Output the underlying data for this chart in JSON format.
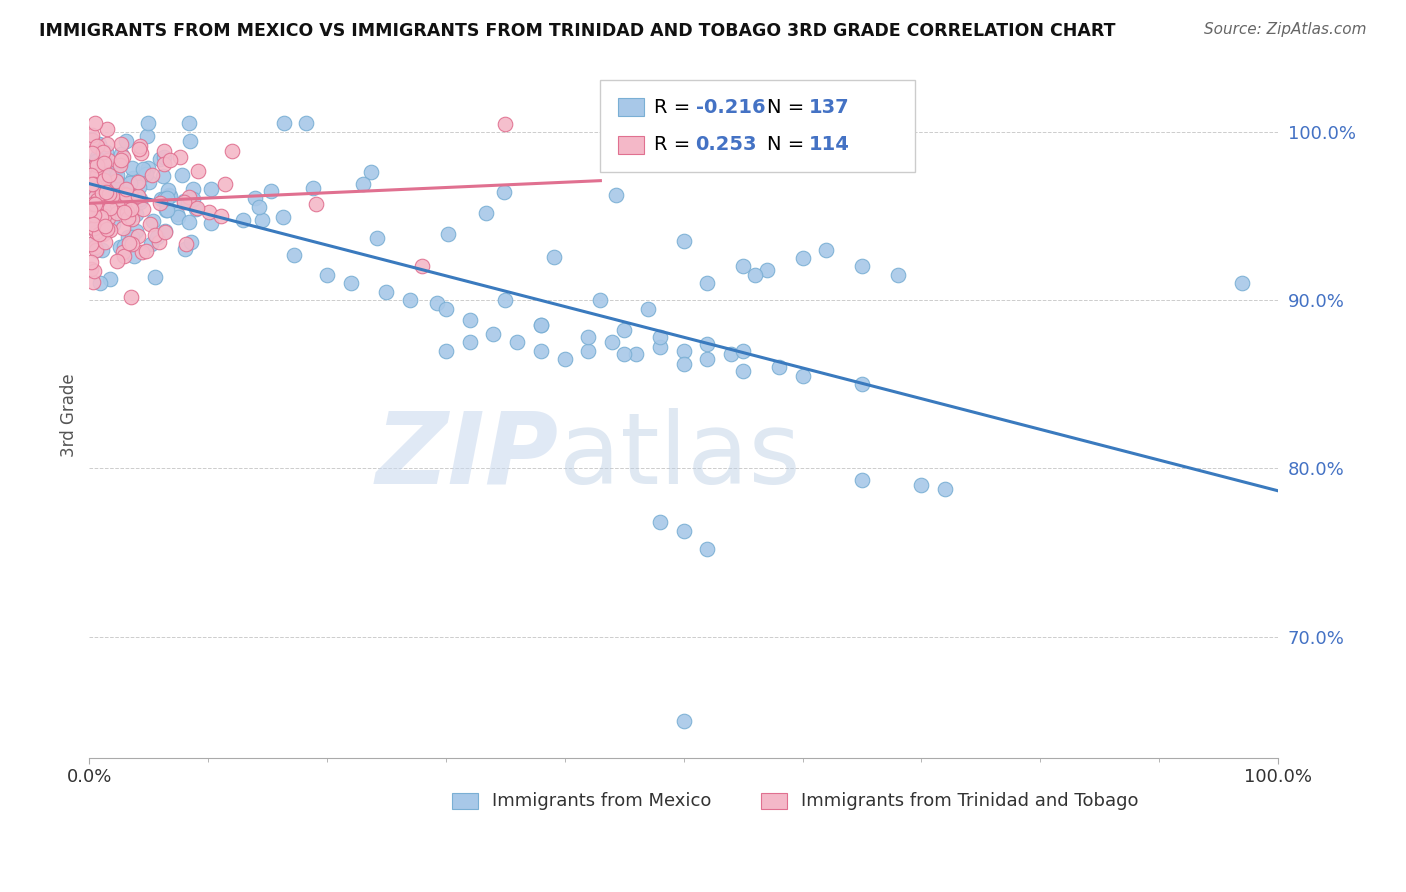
{
  "title": "IMMIGRANTS FROM MEXICO VS IMMIGRANTS FROM TRINIDAD AND TOBAGO 3RD GRADE CORRELATION CHART",
  "source": "Source: ZipAtlas.com",
  "ylabel": "3rd Grade",
  "y_ticks": [
    0.7,
    0.8,
    0.9,
    1.0
  ],
  "y_tick_labels": [
    "70.0%",
    "80.0%",
    "90.0%",
    "100.0%"
  ],
  "x_range": [
    0.0,
    1.0
  ],
  "y_range": [
    0.628,
    1.035
  ],
  "legend_r_mexico": "-0.216",
  "legend_n_mexico": "137",
  "legend_r_tt": "0.253",
  "legend_n_tt": "114",
  "mexico_color": "#a8c8e8",
  "mexico_edge": "#7aafd4",
  "tt_color": "#f4b8c8",
  "tt_edge": "#e07090",
  "mexico_line_color": "#3a7abe",
  "tt_line_color": "#e07090",
  "background_color": "#ffffff"
}
